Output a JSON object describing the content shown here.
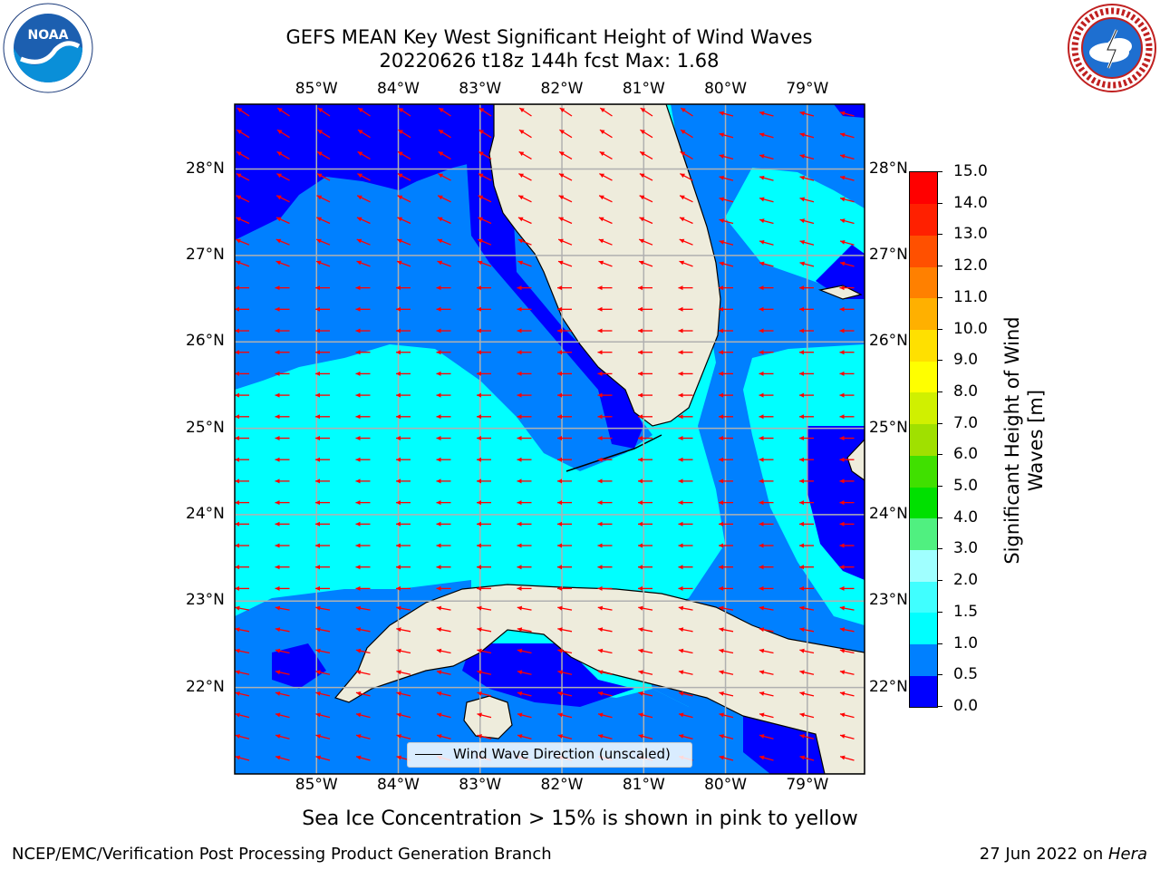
{
  "title_line1": "GEFS MEAN Key West Significant Height of Wind Waves",
  "title_line2": "20220626 t18z 144h fcst   Max: 1.68",
  "lon_ticks": [
    "85°W",
    "84°W",
    "83°W",
    "82°W",
    "81°W",
    "80°W",
    "79°W"
  ],
  "lat_ticks": [
    "28°N",
    "27°N",
    "26°N",
    "25°N",
    "24°N",
    "23°N",
    "22°N"
  ],
  "legend_label": "Wind Wave Direction (unscaled)",
  "ice_note": "Sea Ice Concentration > 15% is shown in pink to yellow",
  "footer_left": "NCEP/EMC/Verification Post Processing Product Generation Branch",
  "footer_right_date": "27 Jun 2022 on ",
  "footer_right_host": "Hera",
  "logo_left": "NOAA",
  "logo_right_text": "NATIONAL WEATHER SERVICE",
  "colorbar": {
    "label_line1": "Significant Height of Wind",
    "label_line2": "Waves [m]",
    "ticks": [
      "0.0",
      "0.5",
      "1.0",
      "1.5",
      "2.0",
      "3.0",
      "4.0",
      "5.0",
      "6.0",
      "7.0",
      "8.0",
      "9.0",
      "10.0",
      "11.0",
      "12.0",
      "13.0",
      "14.0",
      "15.0"
    ],
    "colors": [
      "#0000ff",
      "#0080ff",
      "#00ffff",
      "#40ffff",
      "#a0ffff",
      "#50f080",
      "#00e000",
      "#40e000",
      "#a0e000",
      "#d0f000",
      "#ffff00",
      "#ffe000",
      "#ffb000",
      "#ff8000",
      "#ff5000",
      "#ff2000",
      "#ff0000"
    ]
  },
  "chart_data": {
    "type": "heatmap",
    "variable": "Significant Height of Wind Waves [m]",
    "max": 1.68,
    "lon_range": [
      -86,
      -78.3
    ],
    "lat_range": [
      21,
      28.75
    ],
    "color_levels": [
      0.0,
      0.5,
      1.0,
      1.5,
      2.0,
      3.0,
      4.0,
      5.0,
      6.0,
      7.0,
      8.0,
      9.0,
      10.0,
      11.0,
      12.0,
      13.0,
      14.0,
      15.0
    ],
    "grid": true,
    "legend_placement": "bottom-center",
    "regions": [
      {
        "level": "0.0-0.5",
        "area": "NW Gulf of Mexico, Florida west coast band, Straits of Yucatan edge, Bahamas banks"
      },
      {
        "level": "0.5-1.0",
        "area": "Eastern Gulf band, Florida Straits east, south of Cuba"
      },
      {
        "level": "1.0-1.5",
        "area": "Central Florida Straits, Gulf south of 25.5N, Atlantic east of Florida"
      }
    ],
    "wind_wave_direction": "mostly westward (east to west), turning southwest in north Gulf"
  }
}
